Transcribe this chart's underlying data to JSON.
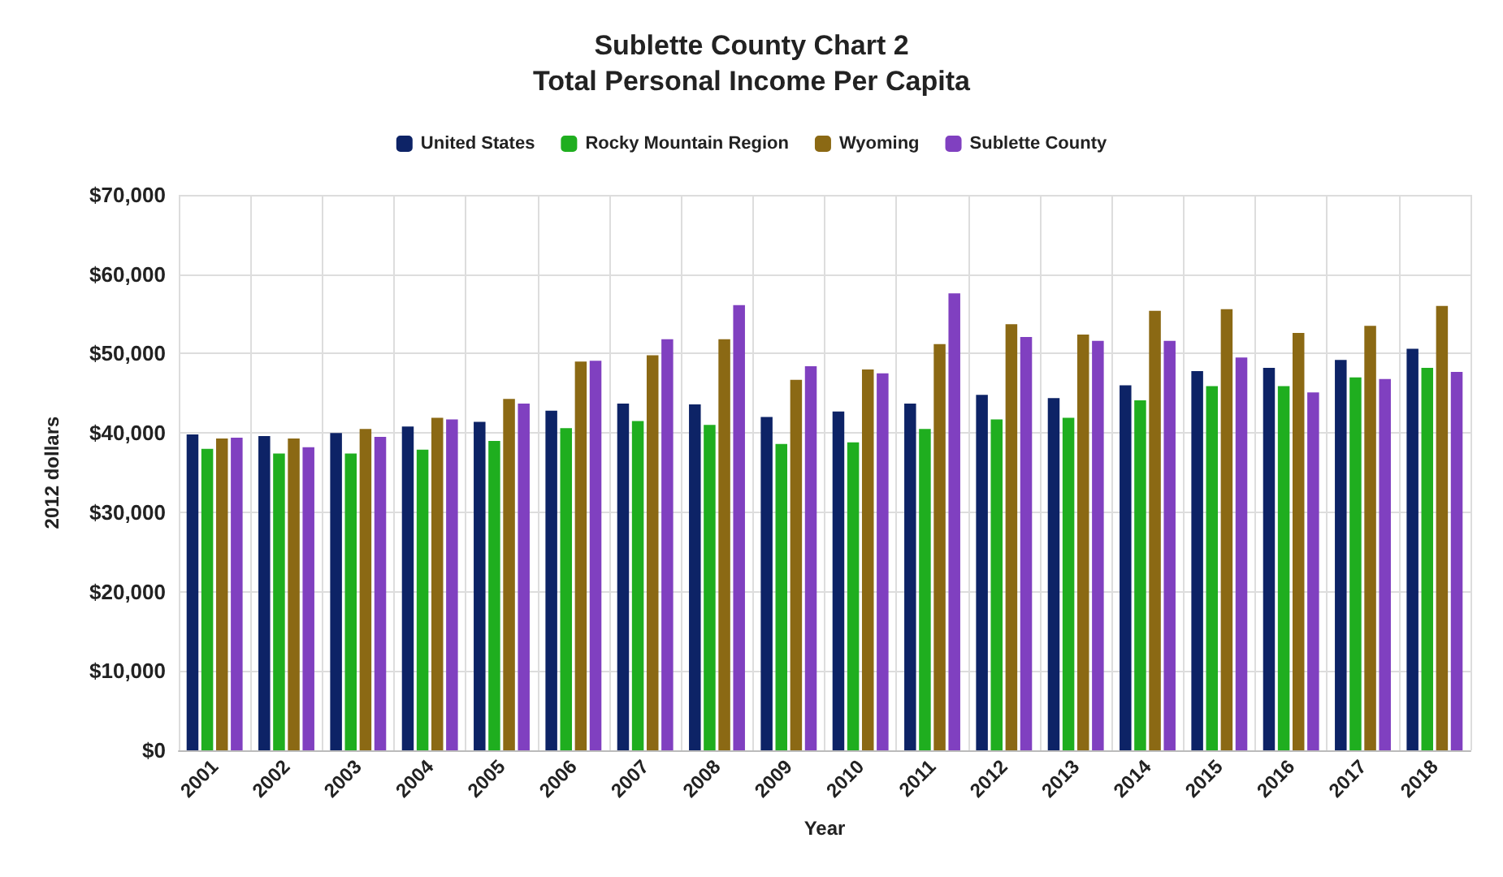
{
  "chart_data": {
    "type": "bar",
    "title": "Sublette County Chart 2\nTotal Personal Income Per Capita",
    "xlabel": "Year",
    "ylabel": "2012 dollars",
    "categories": [
      "2001",
      "2002",
      "2003",
      "2004",
      "2005",
      "2006",
      "2007",
      "2008",
      "2009",
      "2010",
      "2011",
      "2012",
      "2013",
      "2014",
      "2015",
      "2016",
      "2017",
      "2018"
    ],
    "series": [
      {
        "name": "United States",
        "color": "#0d2366",
        "values": [
          39800,
          39600,
          40000,
          40800,
          41400,
          42800,
          43700,
          43600,
          42000,
          42700,
          43700,
          44800,
          44400,
          46000,
          47800,
          48200,
          49200,
          50600
        ]
      },
      {
        "name": "Rocky Mountain Region",
        "color": "#1fae1f",
        "values": [
          38000,
          37400,
          37400,
          37900,
          39000,
          40600,
          41500,
          41000,
          38600,
          38800,
          40500,
          41700,
          41900,
          44100,
          45900,
          45900,
          47000,
          48200
        ]
      },
      {
        "name": "Wyoming",
        "color": "#8b6914",
        "values": [
          39300,
          39300,
          40500,
          41900,
          44300,
          49000,
          49800,
          51800,
          46700,
          48000,
          51200,
          53700,
          52400,
          55400,
          55600,
          52600,
          53500,
          56000
        ]
      },
      {
        "name": "Sublette County",
        "color": "#8040c0",
        "values": [
          39400,
          38200,
          39500,
          41700,
          43700,
          49100,
          51800,
          56100,
          48400,
          47500,
          57600,
          52100,
          51600,
          51600,
          49500,
          45100,
          46800,
          47700
        ]
      }
    ],
    "ylim": [
      0,
      70000
    ],
    "yticks": [
      {
        "value": 0,
        "label": "$0"
      },
      {
        "value": 10000,
        "label": "$10,000"
      },
      {
        "value": 20000,
        "label": "$20,000"
      },
      {
        "value": 30000,
        "label": "$30,000"
      },
      {
        "value": 40000,
        "label": "$40,000"
      },
      {
        "value": 50000,
        "label": "$50,000"
      },
      {
        "value": 60000,
        "label": "$60,000"
      },
      {
        "value": 70000,
        "label": "$70,000"
      }
    ],
    "grid": true,
    "legend": "top"
  }
}
